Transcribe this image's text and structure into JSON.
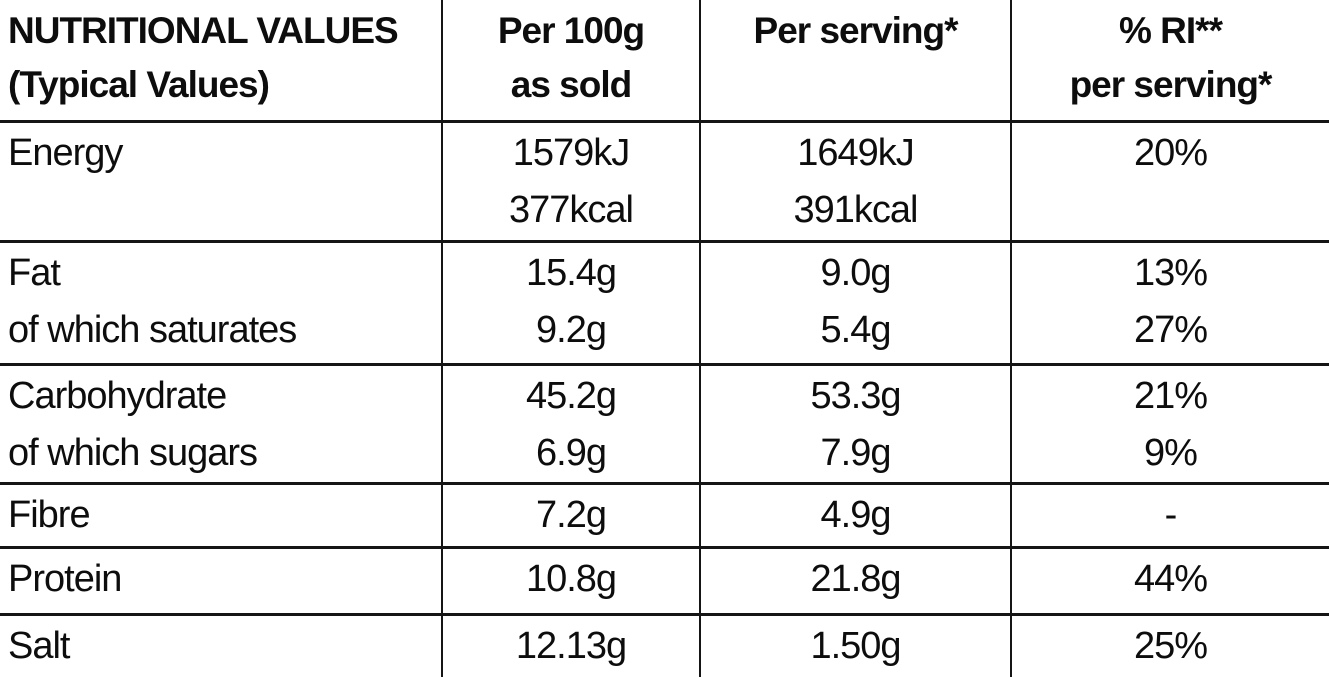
{
  "table": {
    "header": {
      "title_line1": "NUTRITIONAL VALUES",
      "title_line2": "(Typical Values)",
      "per100g_line1": "Per 100g",
      "per100g_line2": "as sold",
      "per_serving": "Per serving*",
      "ri_line1": "% RI**",
      "ri_line2": "per serving*"
    },
    "rows": [
      {
        "id": "energy",
        "labels": [
          "Energy"
        ],
        "per100g": [
          "1579kJ",
          "377kcal"
        ],
        "per_serving": [
          "1649kJ",
          "391kcal"
        ],
        "ri": [
          "20%"
        ]
      },
      {
        "id": "fat",
        "labels": [
          "Fat",
          "of which saturates"
        ],
        "per100g": [
          "15.4g",
          "9.2g"
        ],
        "per_serving": [
          "9.0g",
          "5.4g"
        ],
        "ri": [
          "13%",
          "27%"
        ]
      },
      {
        "id": "carbohydrate",
        "labels": [
          "Carbohydrate",
          "of which sugars"
        ],
        "per100g": [
          "45.2g",
          "6.9g"
        ],
        "per_serving": [
          "53.3g",
          "7.9g"
        ],
        "ri": [
          "21%",
          "9%"
        ]
      },
      {
        "id": "fibre",
        "labels": [
          "Fibre"
        ],
        "per100g": [
          "7.2g"
        ],
        "per_serving": [
          "4.9g"
        ],
        "ri": [
          "-"
        ]
      },
      {
        "id": "protein",
        "labels": [
          "Protein"
        ],
        "per100g": [
          "10.8g"
        ],
        "per_serving": [
          "21.8g"
        ],
        "ri": [
          "44%"
        ]
      },
      {
        "id": "salt",
        "labels": [
          "Salt"
        ],
        "per100g": [
          "12.13g"
        ],
        "per_serving": [
          "1.50g"
        ],
        "ri": [
          "25%"
        ]
      }
    ],
    "colors": {
      "text": "#0d0d0d",
      "border": "#151515",
      "background": "#ffffff"
    }
  }
}
